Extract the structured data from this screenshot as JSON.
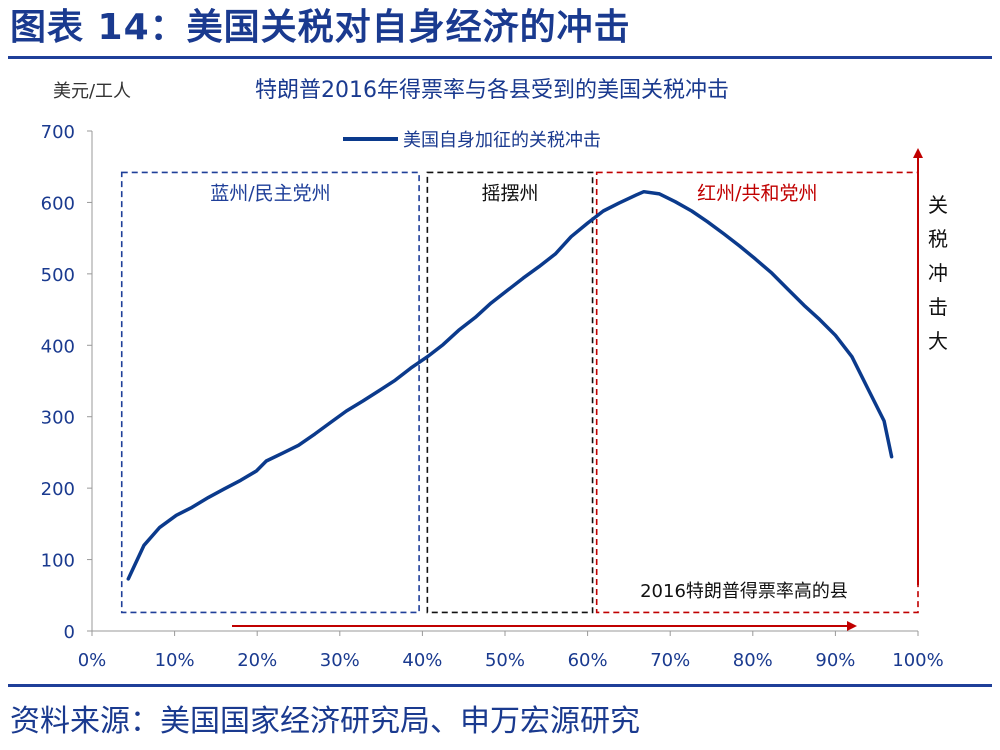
{
  "header": {
    "title": "图表 14：美国关税对自身经济的冲击"
  },
  "footer": {
    "source": "资料来源：美国国家经济研究局、申万宏源研究"
  },
  "chart_data": {
    "type": "line",
    "title": "特朗普2016年得票率与各县受到的美国关税冲击",
    "ylabel": "美元/工人",
    "xlabel": "",
    "xlim": [
      0,
      100
    ],
    "ylim": [
      0,
      700
    ],
    "x_ticks": [
      "0%",
      "10%",
      "20%",
      "30%",
      "40%",
      "50%",
      "60%",
      "70%",
      "80%",
      "90%",
      "100%"
    ],
    "y_ticks": [
      "0",
      "100",
      "200",
      "300",
      "400",
      "500",
      "600",
      "700"
    ],
    "grid": false,
    "legend_position": "top-center",
    "series": [
      {
        "name": "美国自身加征的关税冲击",
        "color": "#0b3a8c",
        "x": [
          4.4,
          6.3,
          8.2,
          10.2,
          12.1,
          14.1,
          16.0,
          18.0,
          19.9,
          21.1,
          23.1,
          25.0,
          27.0,
          28.9,
          30.8,
          32.8,
          34.7,
          36.7,
          38.6,
          40.6,
          42.5,
          44.4,
          46.4,
          48.3,
          50.3,
          52.2,
          54.1,
          56.1,
          58.0,
          60.0,
          61.9,
          63.8,
          65.8,
          66.8,
          68.7,
          70.6,
          72.6,
          74.5,
          76.5,
          78.4,
          80.3,
          82.3,
          84.2,
          86.2,
          88.1,
          90.0,
          92.0,
          93.9,
          95.9,
          96.8
        ],
        "y": [
          73,
          120,
          145,
          162,
          173,
          187,
          199,
          211,
          224,
          238,
          249,
          260,
          276,
          292,
          308,
          322,
          336,
          351,
          368,
          384,
          401,
          421,
          439,
          459,
          477,
          494,
          510,
          528,
          552,
          571,
          588,
          599,
          610,
          615,
          612,
          601,
          588,
          573,
          556,
          539,
          521,
          501,
          479,
          456,
          436,
          414,
          384,
          340,
          294,
          244
        ]
      }
    ],
    "regions": [
      {
        "label": "蓝州/民主党州",
        "x": [
          3.6,
          39.6
        ],
        "y": [
          26,
          642
        ],
        "color": "#1f3f99"
      },
      {
        "label": "摇摆州",
        "x": [
          40.6,
          60.6
        ],
        "y": [
          26,
          642
        ],
        "color": "#111111"
      },
      {
        "label": "红州/共和党州",
        "x": [
          61.1,
          100.0
        ],
        "y": [
          26,
          642
        ],
        "color": "#c00000"
      }
    ],
    "annotations": {
      "x_arrow_label": "2016特朗普得票率高的县",
      "y_arrow_label": "关税冲击大",
      "arrow_color": "#c00000"
    }
  }
}
